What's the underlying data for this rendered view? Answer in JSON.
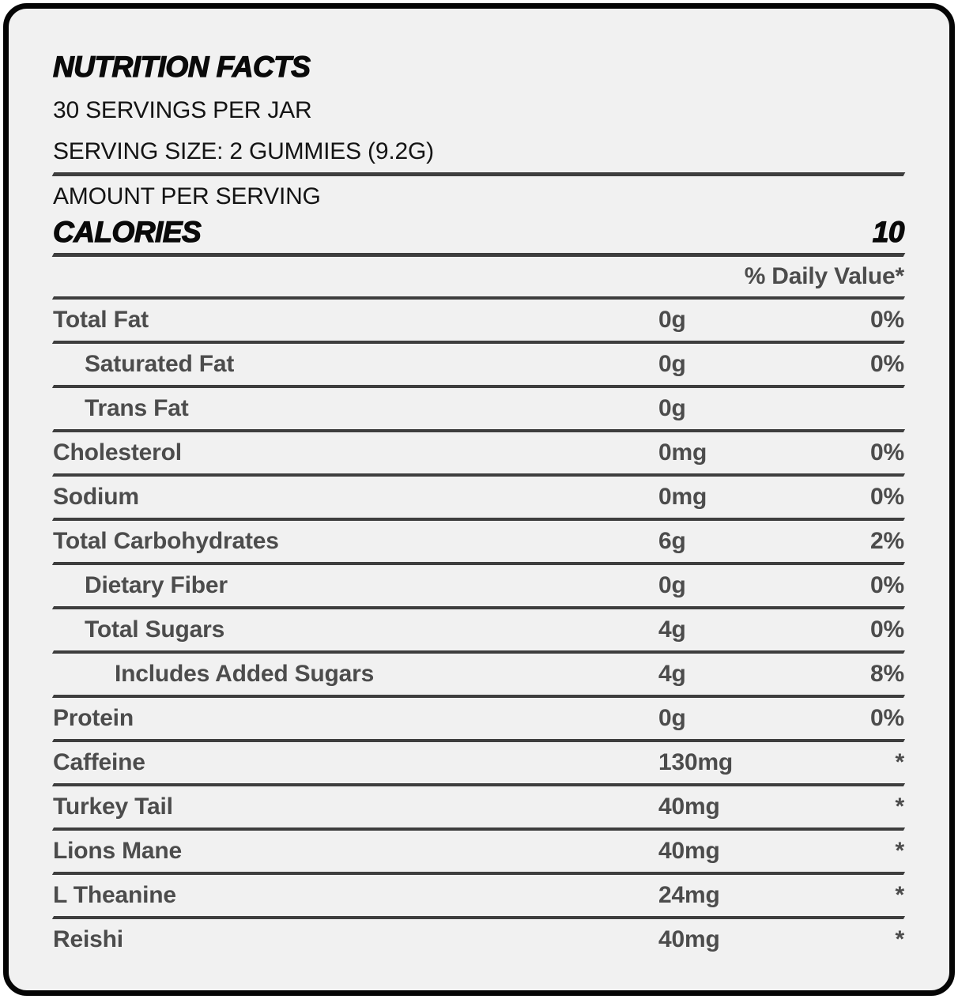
{
  "header": {
    "title": "NUTRITION FACTS",
    "servings_per_jar": "30 SERVINGS PER JAR",
    "serving_size": "SERVING SIZE: 2 GUMMIES (9.2G)",
    "amount_per_serving": "AMOUNT PER SERVING"
  },
  "calories": {
    "label": "CALORIES",
    "value": "10"
  },
  "table": {
    "daily_value_header": "% Daily Value*",
    "rows": [
      {
        "label": "Total Fat",
        "amount": "0g",
        "daily_value": "0%",
        "indent": 0
      },
      {
        "label": "Saturated Fat",
        "amount": "0g",
        "daily_value": "0%",
        "indent": 1
      },
      {
        "label": "Trans Fat",
        "amount": "0g",
        "daily_value": "",
        "indent": 1
      },
      {
        "label": "Cholesterol",
        "amount": "0mg",
        "daily_value": "0%",
        "indent": 0
      },
      {
        "label": "Sodium",
        "amount": "0mg",
        "daily_value": "0%",
        "indent": 0
      },
      {
        "label": "Total Carbohydrates",
        "amount": "6g",
        "daily_value": "2%",
        "indent": 0
      },
      {
        "label": "Dietary Fiber",
        "amount": "0g",
        "daily_value": "0%",
        "indent": 1
      },
      {
        "label": "Total Sugars",
        "amount": "4g",
        "daily_value": "0%",
        "indent": 1
      },
      {
        "label": "Includes Added Sugars",
        "amount": "4g",
        "daily_value": "8%",
        "indent": 2
      },
      {
        "label": "Protein",
        "amount": "0g",
        "daily_value": "0%",
        "indent": 0
      },
      {
        "label": "Caffeine",
        "amount": "130mg",
        "daily_value": "*",
        "indent": 0
      },
      {
        "label": "Turkey Tail",
        "amount": "40mg",
        "daily_value": "*",
        "indent": 0
      },
      {
        "label": "Lions Mane",
        "amount": "40mg",
        "daily_value": "*",
        "indent": 0
      },
      {
        "label": "L Theanine",
        "amount": "24mg",
        "daily_value": "*",
        "indent": 0
      },
      {
        "label": "Reishi",
        "amount": "40mg",
        "daily_value": "*",
        "indent": 0
      }
    ]
  },
  "colors": {
    "card_background": "#f1f1f1",
    "border": "#050505",
    "primary_text": "#0a0a0a",
    "secondary_text": "#4c4c4c",
    "divider": "#3e3e3e"
  }
}
